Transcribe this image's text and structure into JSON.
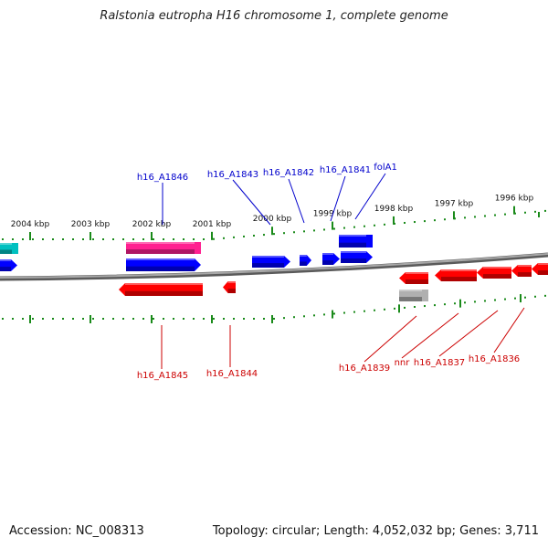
{
  "title": "Ralstonia eutropha H16 chromosome 1, complete genome",
  "footer": {
    "accession": "Accession: NC_008313",
    "summary": "Topology: circular; Length: 4,052,032 bp; Genes: 3,711"
  },
  "colors": {
    "plus_strand": "#0000ff",
    "minus_strand": "#ff0000",
    "cyan": "#00c0c0",
    "pink": "#ff2090",
    "gray": "#b0b0b0",
    "tick": "#1a8a1a",
    "label_plus": "#0000cc",
    "label_minus": "#cc0000",
    "backbone": "#808080"
  },
  "scale": {
    "unit": "kbp",
    "ticks": [
      {
        "kbp": 2004,
        "label": "2004 kbp"
      },
      {
        "kbp": 2003,
        "label": "2003 kbp"
      },
      {
        "kbp": 2002,
        "label": "2002 kbp"
      },
      {
        "kbp": 2001,
        "label": "2001 kbp"
      },
      {
        "kbp": 2000,
        "label": "2000 kbp"
      },
      {
        "kbp": 1999,
        "label": "1999 kbp"
      },
      {
        "kbp": 1998,
        "label": "1998 kbp"
      },
      {
        "kbp": 1997,
        "label": "1997 kbp"
      },
      {
        "kbp": 1996,
        "label": "1996 kbp"
      }
    ]
  },
  "genes": {
    "plus": [
      {
        "label": "h16_A1846",
        "color": "pink"
      },
      {
        "label": "h16_A1843",
        "color": "plus_strand"
      },
      {
        "label": "h16_A1842",
        "color": "plus_strand"
      },
      {
        "label": "h16_A1841",
        "color": "plus_strand"
      },
      {
        "label": "folA1",
        "color": "plus_strand"
      }
    ],
    "minus": [
      {
        "label": "h16_A1845",
        "color": "minus_strand"
      },
      {
        "label": "h16_A1844",
        "color": "minus_strand"
      },
      {
        "label": "h16_A1839",
        "color": "minus_strand"
      },
      {
        "label": "nnr",
        "color": "minus_strand"
      },
      {
        "label": "h16_A1837",
        "color": "minus_strand"
      },
      {
        "label": "h16_A1836",
        "color": "minus_strand"
      }
    ]
  }
}
